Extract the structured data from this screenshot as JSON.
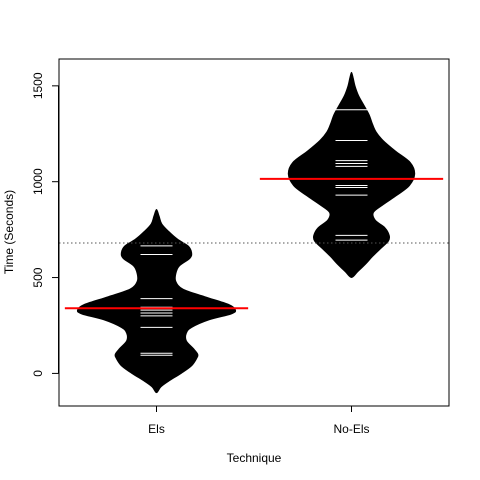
{
  "chart_data": {
    "type": "beanplot",
    "title": "",
    "xlabel": "Technique",
    "ylabel": "Time (Seconds)",
    "ylim": [
      -170,
      1640
    ],
    "y_ticks": [
      0,
      500,
      1000,
      1500
    ],
    "y_tick_labels": [
      "0",
      "500",
      "1000",
      "1500"
    ],
    "overall_mean": 680,
    "colors": {
      "bean": "#000000",
      "observation_line": "#ffffff",
      "group_mean": "#ff0000",
      "overall_mean": "#555555"
    },
    "groups": [
      {
        "name": "Els",
        "mean": 340,
        "observations": [
          95,
          105,
          240,
          300,
          315,
          330,
          345,
          390,
          620,
          665
        ],
        "density": [
          [
            -100,
            0.0
          ],
          [
            -70,
            0.05
          ],
          [
            -40,
            0.14
          ],
          [
            0,
            0.28
          ],
          [
            40,
            0.4
          ],
          [
            80,
            0.46
          ],
          [
            100,
            0.47
          ],
          [
            130,
            0.42
          ],
          [
            170,
            0.34
          ],
          [
            210,
            0.34
          ],
          [
            240,
            0.4
          ],
          [
            280,
            0.6
          ],
          [
            310,
            0.85
          ],
          [
            330,
            0.9
          ],
          [
            360,
            0.82
          ],
          [
            400,
            0.55
          ],
          [
            440,
            0.3
          ],
          [
            480,
            0.22
          ],
          [
            520,
            0.22
          ],
          [
            560,
            0.26
          ],
          [
            600,
            0.38
          ],
          [
            630,
            0.4
          ],
          [
            665,
            0.36
          ],
          [
            700,
            0.24
          ],
          [
            740,
            0.14
          ],
          [
            780,
            0.06
          ],
          [
            820,
            0.03
          ],
          [
            855,
            0.0
          ]
        ]
      },
      {
        "name": "No-Els",
        "mean": 1015,
        "observations": [
          695,
          720,
          930,
          970,
          980,
          1080,
          1095,
          1110,
          1215,
          1375
        ],
        "density": [
          [
            500,
            0.0
          ],
          [
            530,
            0.07
          ],
          [
            570,
            0.16
          ],
          [
            610,
            0.24
          ],
          [
            650,
            0.33
          ],
          [
            690,
            0.42
          ],
          [
            720,
            0.43
          ],
          [
            760,
            0.38
          ],
          [
            800,
            0.27
          ],
          [
            840,
            0.25
          ],
          [
            880,
            0.36
          ],
          [
            930,
            0.52
          ],
          [
            980,
            0.66
          ],
          [
            1040,
            0.72
          ],
          [
            1100,
            0.67
          ],
          [
            1160,
            0.5
          ],
          [
            1215,
            0.36
          ],
          [
            1260,
            0.28
          ],
          [
            1300,
            0.24
          ],
          [
            1350,
            0.2
          ],
          [
            1400,
            0.14
          ],
          [
            1450,
            0.08
          ],
          [
            1500,
            0.04
          ],
          [
            1540,
            0.02
          ],
          [
            1570,
            0.0
          ]
        ]
      }
    ]
  }
}
